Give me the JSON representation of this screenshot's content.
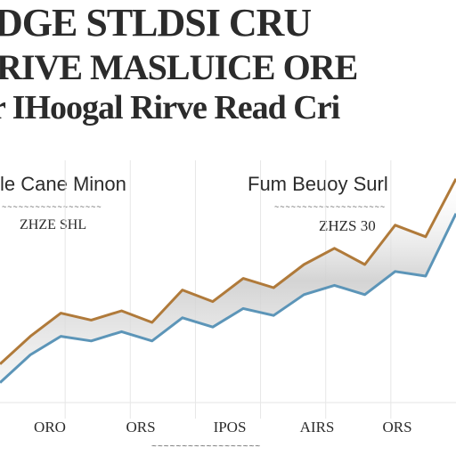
{
  "title": {
    "line1": "DGE STLDSI CRU",
    "line2": "RIVE MASLUICE ORE",
    "line3": "r IHoogal Rirve Read Cri"
  },
  "panels": {
    "left": {
      "title": "le Cane Minon",
      "subtitle": "~~~~~~~~~~~~~~~~~~",
      "value": "ZHZE SHL"
    },
    "right": {
      "title": "Fum Beuoy Surl",
      "subtitle": "~~~~~~~~~~~~~~~~~~~~",
      "value": "ZHZS 30"
    }
  },
  "colors": {
    "upper_line": "#b07a3a",
    "lower_line": "#5c95b8",
    "band_shadow": "#cfcfcf",
    "grid": "#e6e6e6"
  },
  "chart_data": {
    "type": "line",
    "title": "",
    "xlabel": "~~~~~~~~~~~~~~~~~~",
    "ylabel": "",
    "categories": [
      "ORO",
      "ORS",
      "IPOS",
      "AIRS",
      "ORS"
    ],
    "x": [
      0,
      1,
      2,
      3,
      4,
      5,
      6,
      7,
      8,
      9,
      10,
      11,
      12,
      13,
      14,
      15
    ],
    "series": [
      {
        "values": [
          12,
          24,
          34,
          31,
          35,
          30,
          44,
          39,
          49,
          45,
          55,
          62,
          55,
          72,
          67,
          92
        ]
      },
      {
        "values": [
          4,
          16,
          24,
          22,
          26,
          22,
          32,
          28,
          36,
          33,
          42,
          46,
          42,
          52,
          50,
          77
        ]
      }
    ],
    "ylim": [
      0,
      100
    ],
    "grid": true,
    "legend": "none"
  }
}
